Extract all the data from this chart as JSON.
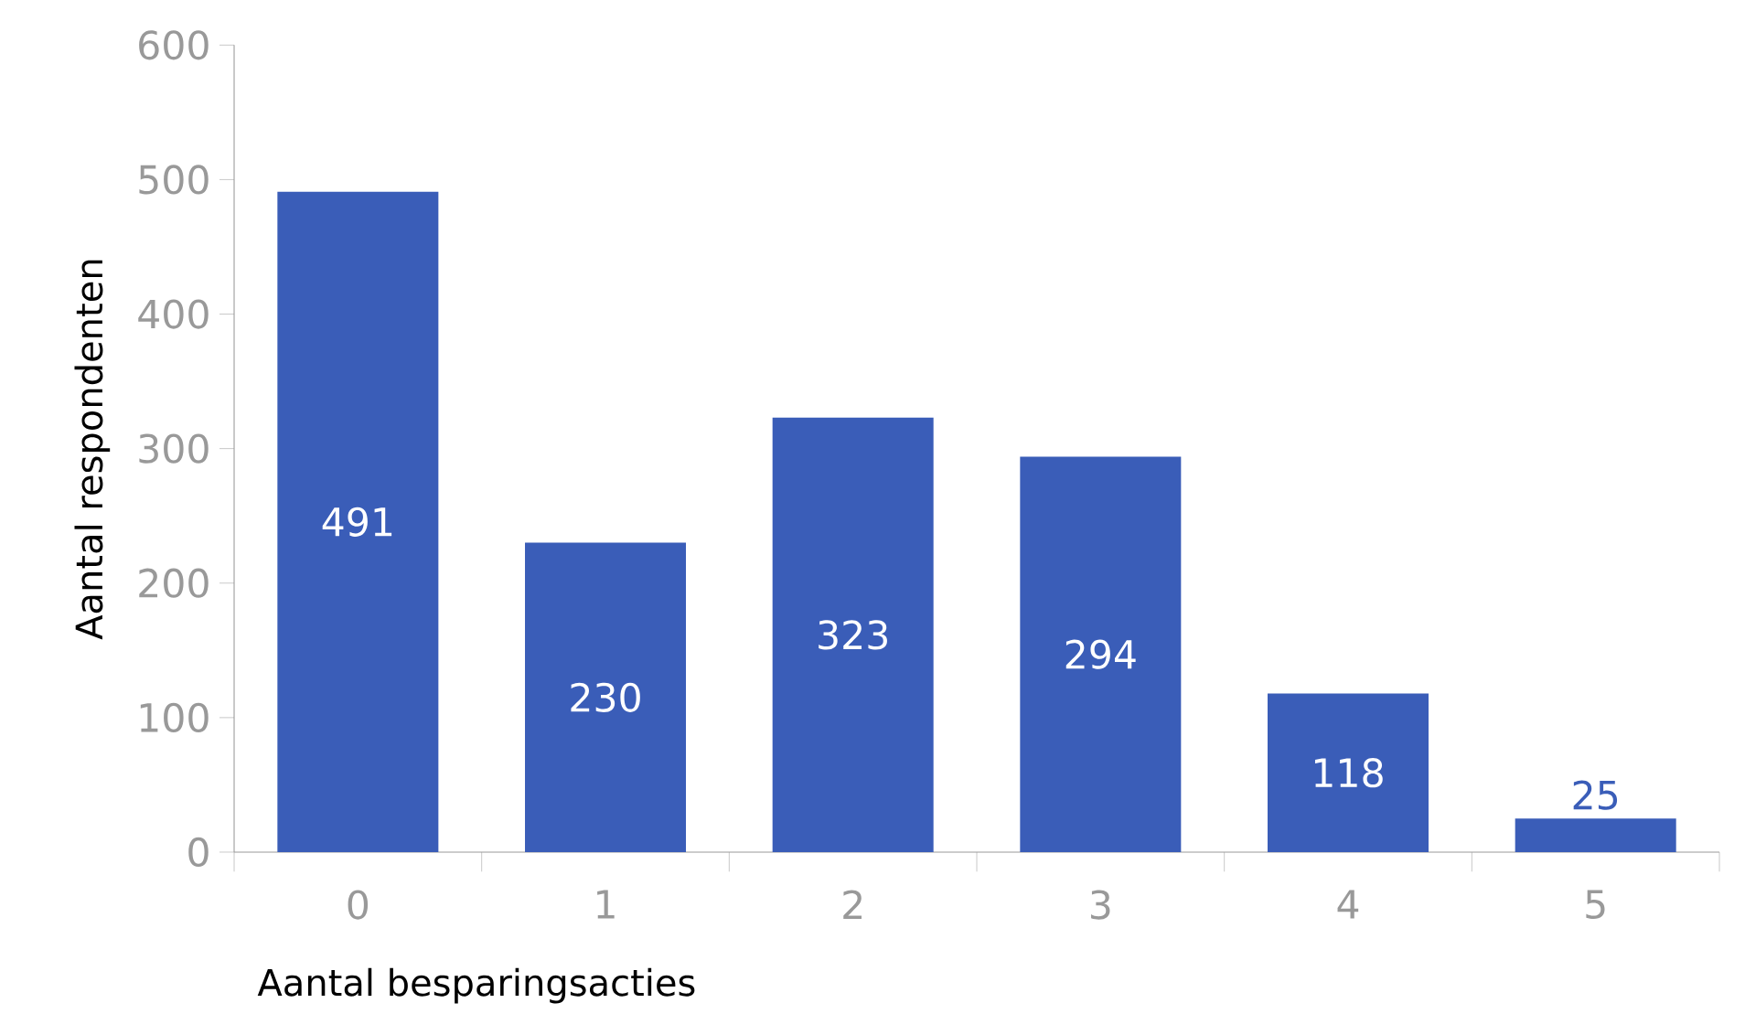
{
  "chart_data": {
    "type": "bar",
    "categories": [
      "0",
      "1",
      "2",
      "3",
      "4",
      "5"
    ],
    "values": [
      491,
      230,
      323,
      294,
      118,
      25
    ],
    "color": "#3a5db8",
    "xlabel": "Aantal besparingsacties",
    "ylabel": "Aantal respondenten",
    "ylim": [
      0,
      600
    ],
    "yticks": [
      0,
      100,
      200,
      300,
      400,
      500,
      600
    ],
    "data_labels": true
  }
}
